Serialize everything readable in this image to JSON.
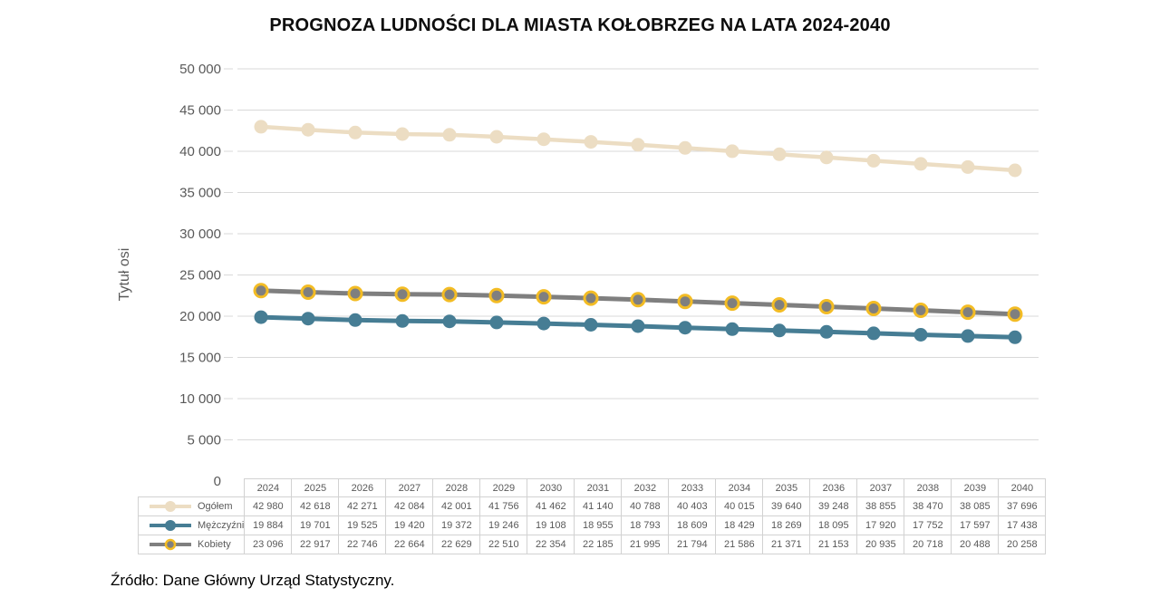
{
  "title": "PROGNOZA LUDNOŚCI DLA MIASTA KOŁOBRZEG NA LATA 2024-2040",
  "source": "Źródło: Dane Główny Urząd Statystyczny.",
  "y_axis": {
    "label": "Tytuł osi",
    "tick_values": [
      0,
      5000,
      10000,
      15000,
      20000,
      25000,
      30000,
      35000,
      40000,
      45000,
      50000
    ],
    "tick_labels": [
      "0",
      "5 000",
      "10 000",
      "15 000",
      "20 000",
      "25 000",
      "30 000",
      "35 000",
      "40 000",
      "45 000",
      "50 000"
    ],
    "min": 0,
    "max": 50000,
    "step": 5000
  },
  "colors": {
    "ogolem": "#ECDDC3",
    "mezczyzni": "#467D94",
    "kobiety_line": "#7F7F7F",
    "kobiety_ring": "#F3BC24",
    "gridline": "#D9D9D9",
    "table_border": "#D2D2D2",
    "muted_text": "#595959",
    "title_text": "#0D0D0D"
  },
  "chart_data": {
    "type": "line",
    "title": "PROGNOZA LUDNOŚCI DLA MIASTA KOŁOBRZEG NA LATA 2024-2040",
    "xlabel": "",
    "ylabel": "Tytuł osi",
    "ylim": [
      0,
      50000
    ],
    "grid": true,
    "legend_position": "table-left",
    "categories": [
      "2024",
      "2025",
      "2026",
      "2027",
      "2028",
      "2029",
      "2030",
      "2031",
      "2032",
      "2033",
      "2034",
      "2035",
      "2036",
      "2037",
      "2038",
      "2039",
      "2040"
    ],
    "series": [
      {
        "name": "Ogółem",
        "line_color": "#ECDDC3",
        "line_width": 4.5,
        "marker": {
          "shape": "circle",
          "radius": 7.5,
          "fill": "#ECDDC3",
          "ring": null
        },
        "values": [
          42980,
          42618,
          42271,
          42084,
          42001,
          41756,
          41462,
          41140,
          40788,
          40403,
          40015,
          39640,
          39248,
          38855,
          38470,
          38085,
          37696
        ]
      },
      {
        "name": "Mężczyźni",
        "line_color": "#467D94",
        "line_width": 5,
        "marker": {
          "shape": "circle",
          "radius": 7.5,
          "fill": "#467D94",
          "ring": null
        },
        "values": [
          19884,
          19701,
          19525,
          19420,
          19372,
          19246,
          19108,
          18955,
          18793,
          18609,
          18429,
          18269,
          18095,
          17920,
          17752,
          17597,
          17438
        ]
      },
      {
        "name": "Kobiety",
        "line_color": "#7F7F7F",
        "line_width": 5,
        "marker": {
          "shape": "circle",
          "radius": 7,
          "fill": "#7F7F7F",
          "ring": {
            "color": "#F3BC24",
            "width": 3
          }
        },
        "values": [
          23096,
          22917,
          22746,
          22664,
          22629,
          22510,
          22354,
          22185,
          21995,
          21794,
          21586,
          21371,
          21153,
          20935,
          20718,
          20488,
          20258
        ]
      }
    ]
  }
}
